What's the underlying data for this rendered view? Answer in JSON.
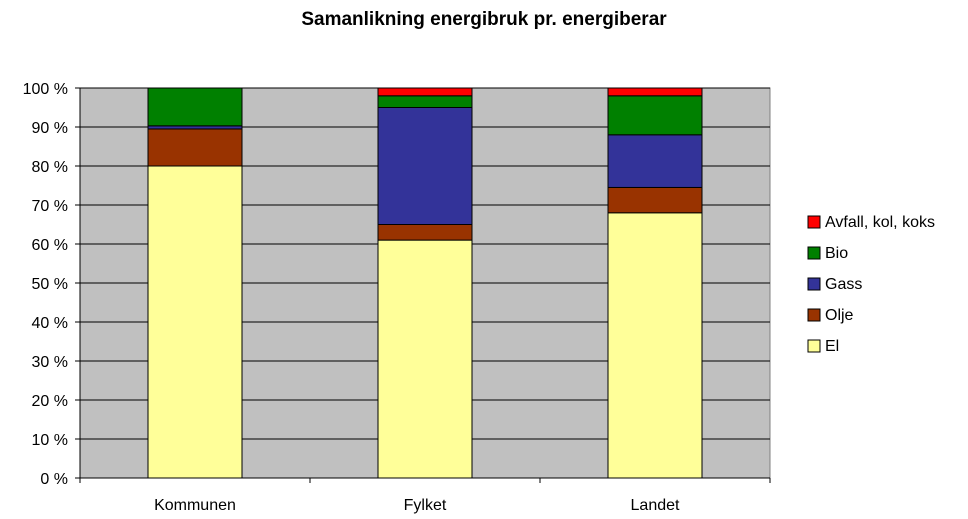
{
  "chart_data": {
    "type": "bar",
    "stacked": true,
    "title": "Samanlikning energibruk pr. energiberar",
    "categories": [
      "Kommunen",
      "Fylket",
      "Landet"
    ],
    "series": [
      {
        "name": "El",
        "color": "#ffff99",
        "values": [
          80,
          61,
          68
        ]
      },
      {
        "name": "Olje",
        "color": "#993300",
        "values": [
          9.5,
          4,
          6.5
        ]
      },
      {
        "name": "Gass",
        "color": "#333399",
        "values": [
          0.8,
          30,
          13.5
        ]
      },
      {
        "name": "Bio",
        "color": "#008000",
        "values": [
          9.7,
          3,
          10
        ]
      },
      {
        "name": "Avfall, kol, koks",
        "color": "#ff0000",
        "values": [
          0,
          2,
          2
        ]
      }
    ],
    "ylim": [
      0,
      100
    ],
    "yticks": [
      {
        "value": 0,
        "label": "0 %"
      },
      {
        "value": 10,
        "label": "10 %"
      },
      {
        "value": 20,
        "label": "20 %"
      },
      {
        "value": 30,
        "label": "30 %"
      },
      {
        "value": 40,
        "label": "40 %"
      },
      {
        "value": 50,
        "label": "50 %"
      },
      {
        "value": 60,
        "label": "60 %"
      },
      {
        "value": 70,
        "label": "70 %"
      },
      {
        "value": 80,
        "label": "80 %"
      },
      {
        "value": 90,
        "label": "90 %"
      },
      {
        "value": 100,
        "label": "100 %"
      }
    ],
    "grid": true,
    "legend": "right"
  }
}
